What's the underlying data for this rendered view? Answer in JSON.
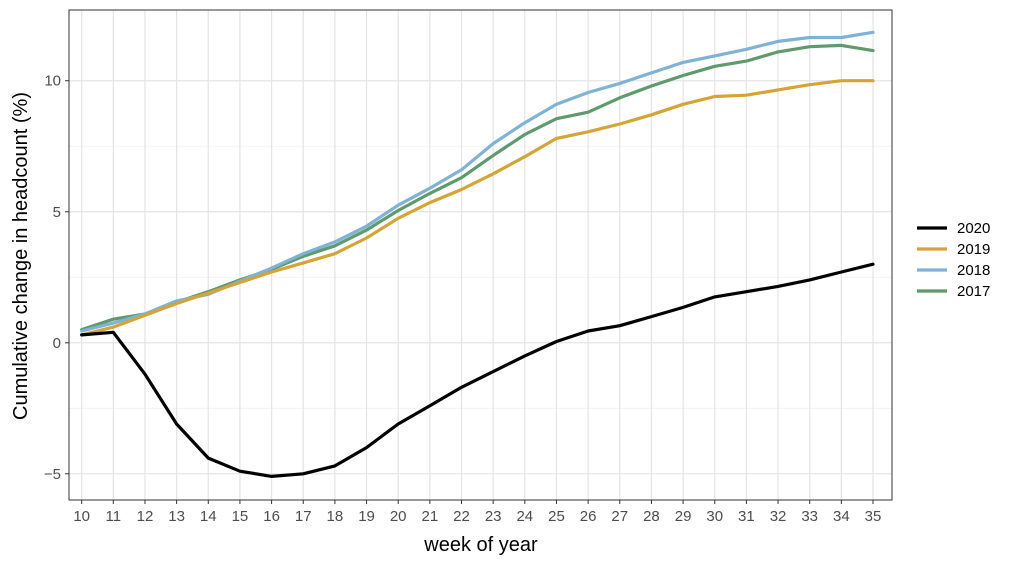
{
  "chart_data": {
    "type": "line",
    "title": "",
    "xlabel": "week of year",
    "ylabel": "Cumulative change in headcount (%)",
    "x": [
      10,
      11,
      12,
      13,
      14,
      15,
      16,
      17,
      18,
      19,
      20,
      21,
      22,
      23,
      24,
      25,
      26,
      27,
      28,
      29,
      30,
      31,
      32,
      33,
      34,
      35
    ],
    "xlim": [
      9.6,
      35.6
    ],
    "ylim": [
      -6.0,
      12.7
    ],
    "y_ticks": [
      -5,
      0,
      5,
      10
    ],
    "y_tick_labels": [
      "−5",
      "0",
      "5",
      "10"
    ],
    "grid": true,
    "legend_position": "right",
    "series": [
      {
        "name": "2020",
        "color": "#000000",
        "values": [
          0.3,
          0.4,
          -1.2,
          -3.1,
          -4.4,
          -4.9,
          -5.1,
          -5.0,
          -4.7,
          -4.0,
          -3.1,
          -2.4,
          -1.7,
          -1.1,
          -0.5,
          0.05,
          0.45,
          0.65,
          1.0,
          1.35,
          1.75,
          1.95,
          2.15,
          2.4,
          2.7,
          3.0
        ]
      },
      {
        "name": "2019",
        "color": "#D4A536",
        "values": [
          0.3,
          0.6,
          1.05,
          1.5,
          1.9,
          2.3,
          2.7,
          3.05,
          3.4,
          4.0,
          4.75,
          5.35,
          5.85,
          6.45,
          7.1,
          7.8,
          8.05,
          8.35,
          8.7,
          9.1,
          9.4,
          9.45,
          9.65,
          9.85,
          10.0,
          10.0
        ]
      },
      {
        "name": "2018",
        "color": "#7FB2D5",
        "values": [
          0.45,
          0.75,
          1.1,
          1.6,
          1.85,
          2.35,
          2.85,
          3.4,
          3.85,
          4.45,
          5.25,
          5.9,
          6.6,
          7.6,
          8.4,
          9.1,
          9.55,
          9.9,
          10.3,
          10.7,
          10.95,
          11.2,
          11.5,
          11.65,
          11.65,
          11.85
        ]
      },
      {
        "name": "2017",
        "color": "#5E9A6E",
        "values": [
          0.5,
          0.9,
          1.1,
          1.55,
          1.95,
          2.4,
          2.8,
          3.3,
          3.7,
          4.3,
          5.05,
          5.7,
          6.3,
          7.15,
          7.95,
          8.55,
          8.8,
          9.35,
          9.8,
          10.2,
          10.55,
          10.75,
          11.1,
          11.3,
          11.35,
          11.15
        ]
      }
    ]
  }
}
